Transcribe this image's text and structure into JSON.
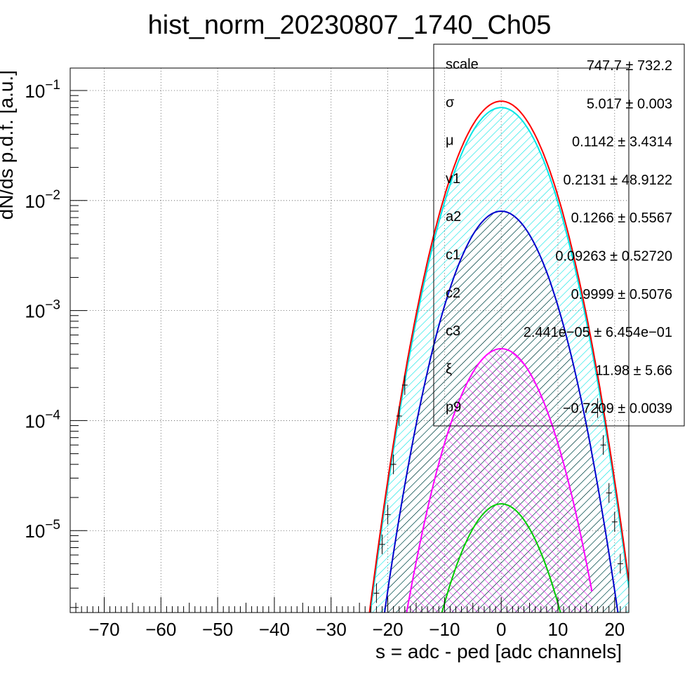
{
  "chart_data": {
    "type": "line",
    "title": "hist_norm_20230807_1740_Ch05",
    "xlabel": "s = adc - ped [adc channels]",
    "ylabel": "dN/ds p.d.f. [a.u.]",
    "xlim": [
      -76,
      22.5
    ],
    "ylim": [
      1.8e-06,
      0.16
    ],
    "y_scale": "log",
    "grid": true,
    "x_ticks": [
      {
        "value": -70,
        "label": "−70"
      },
      {
        "value": -60,
        "label": "−60"
      },
      {
        "value": -50,
        "label": "−50"
      },
      {
        "value": -40,
        "label": "−40"
      },
      {
        "value": -30,
        "label": "−30"
      },
      {
        "value": -20,
        "label": "−20"
      },
      {
        "value": -10,
        "label": "−10"
      },
      {
        "value": 0,
        "label": "0"
      },
      {
        "value": 10,
        "label": "10"
      },
      {
        "value": 20,
        "label": "20"
      }
    ],
    "y_ticks": [
      {
        "value": 0.1,
        "mant": "10",
        "exp": "−1"
      },
      {
        "value": 0.01,
        "mant": "10",
        "exp": "−2"
      },
      {
        "value": 0.001,
        "mant": "10",
        "exp": "−3"
      },
      {
        "value": 0.0001,
        "mant": "10",
        "exp": "−4"
      },
      {
        "value": 1e-05,
        "mant": "10",
        "exp": "−5"
      }
    ],
    "series": [
      {
        "role": "total",
        "color": "#ff0000",
        "fill": "none",
        "peak": 0.08,
        "mu": 0.0,
        "sigma": 5.02,
        "range": [
          -24,
          22.5
        ]
      },
      {
        "role": "component-cyan",
        "color": "#00e5e5",
        "fill": "hatch-cyan",
        "peak": 0.07,
        "mu": 0.0,
        "sigma": 5.02,
        "range": [
          -24,
          22.5
        ]
      },
      {
        "role": "component-blue",
        "color": "#0000cc",
        "fill": "hatch-black",
        "peak": 0.008,
        "mu": 0.0,
        "sigma": 5.02,
        "range": [
          -21,
          21
        ]
      },
      {
        "role": "component-magenta",
        "color": "#ff00ff",
        "fill": "hatch-magenta",
        "peak": 0.00045,
        "mu": 0.0,
        "sigma": 5.02,
        "range": [
          -17,
          16
        ]
      },
      {
        "role": "component-green",
        "color": "#00cc00",
        "fill": "none",
        "peak": 1.75e-05,
        "mu": 0.0,
        "sigma": 4.9,
        "range": [
          -12,
          10.5
        ]
      }
    ],
    "data_points": [
      {
        "x": -22,
        "y": 2.7e-06
      },
      {
        "x": -21,
        "y": 7.5e-06
      },
      {
        "x": -20,
        "y": 1.4e-05
      },
      {
        "x": -19,
        "y": 4e-05
      },
      {
        "x": -18,
        "y": 0.00011
      },
      {
        "x": -17,
        "y": 0.00021
      },
      {
        "x": 17,
        "y": 0.00013
      },
      {
        "x": 18,
        "y": 6e-05
      },
      {
        "x": 19,
        "y": 2.2e-05
      },
      {
        "x": 20,
        "y": 1.2e-05
      },
      {
        "x": 21,
        "y": 5e-06
      }
    ],
    "stats_box": [
      {
        "name": "scale",
        "value": "747.7 ± 732.2"
      },
      {
        "name": "σ",
        "value": "5.017 ± 0.003"
      },
      {
        "name": "μ",
        "value": "0.1142 ± 3.4314"
      },
      {
        "name": "v1",
        "value": "0.2131 ± 48.9122"
      },
      {
        "name": "a2",
        "value": "0.1266 ± 0.5567"
      },
      {
        "name": "c1",
        "value": "0.09263 ± 0.52720"
      },
      {
        "name": "c2",
        "value": "0.9999 ± 0.5076"
      },
      {
        "name": "c3",
        "value": "2.441e−05 ± 6.454e−01"
      },
      {
        "name": "ξ",
        "value": "11.98 ± 5.66"
      },
      {
        "name": "p9",
        "value": "−0.7209 ± 0.0039"
      }
    ]
  }
}
